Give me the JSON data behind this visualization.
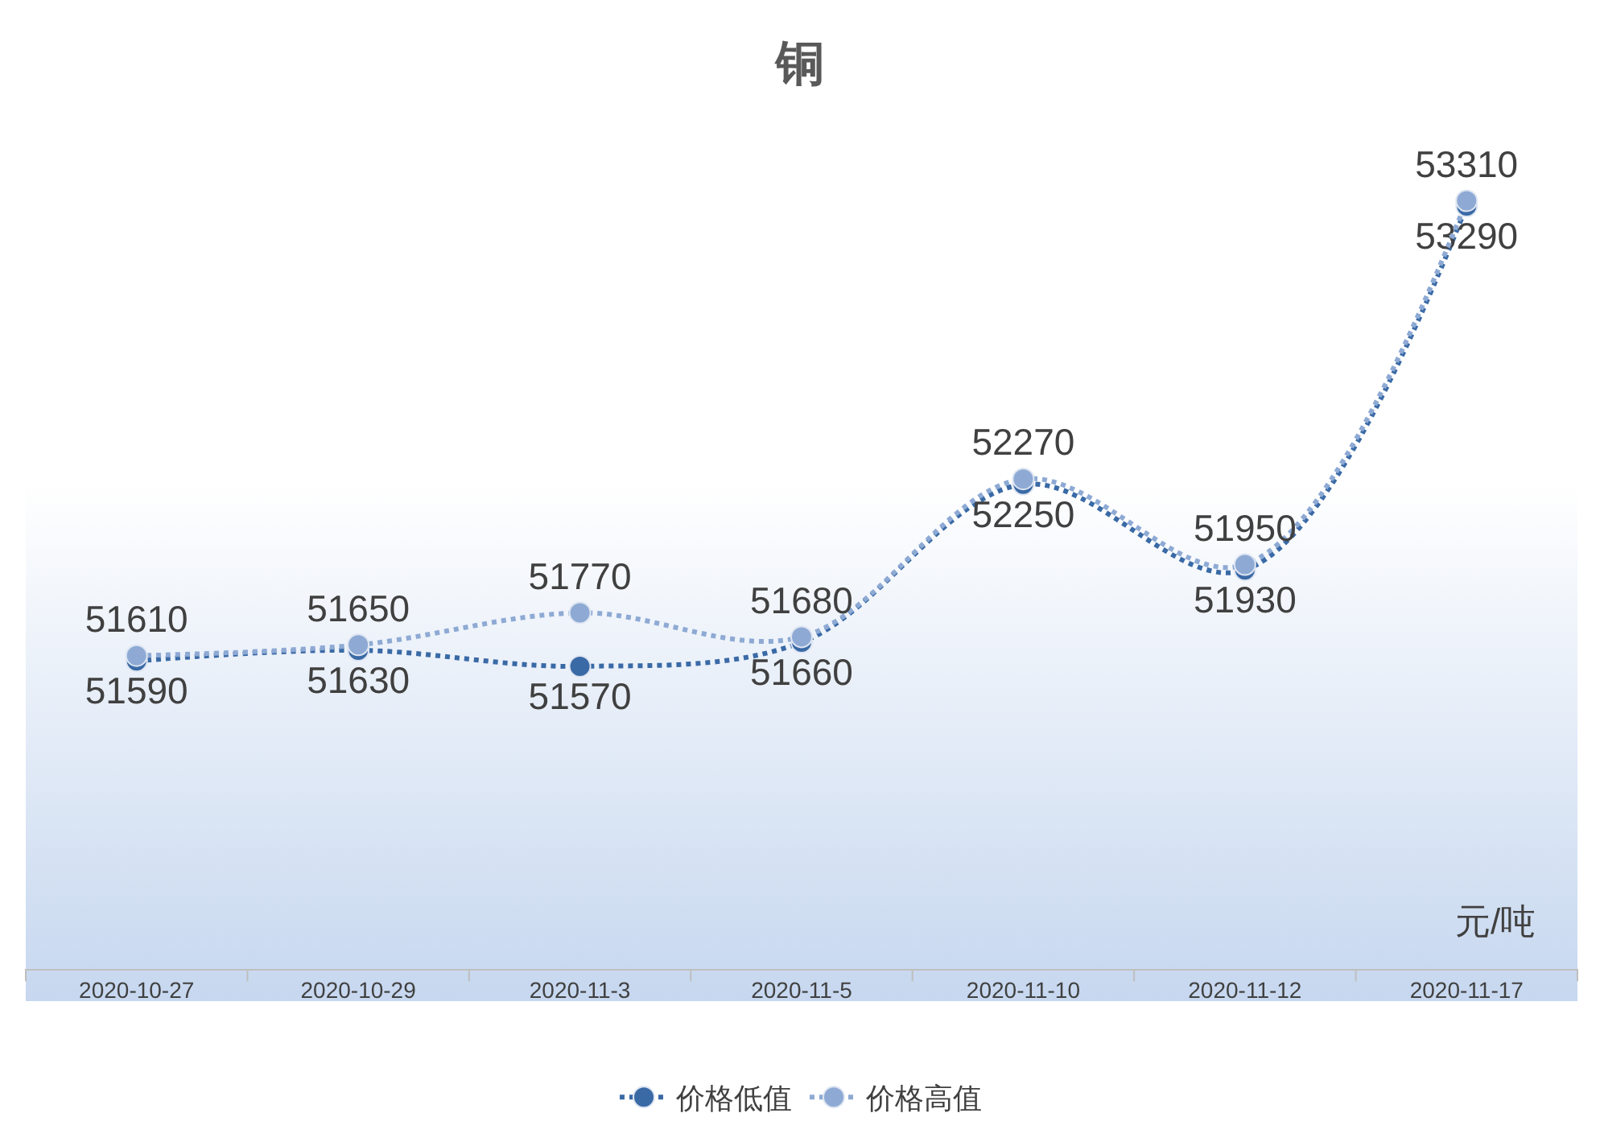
{
  "chart_data": {
    "type": "line",
    "title": "铜",
    "categories": [
      "2020-10-27",
      "2020-10-29",
      "2020-11-3",
      "2020-11-5",
      "2020-11-10",
      "2020-11-12",
      "2020-11-17"
    ],
    "series": [
      {
        "name": "价格低值",
        "color": "#3a6aa6",
        "values": [
          51590,
          51630,
          51570,
          51660,
          52250,
          51930,
          53290
        ]
      },
      {
        "name": "价格高值",
        "color": "#8eaad4",
        "values": [
          51610,
          51650,
          51770,
          51680,
          52270,
          51950,
          53310
        ]
      }
    ],
    "annotations": [
      "元/吨"
    ],
    "data_labels": true,
    "legend": "bottom",
    "grid": false,
    "marker": "circle",
    "line_style": "dotted"
  }
}
